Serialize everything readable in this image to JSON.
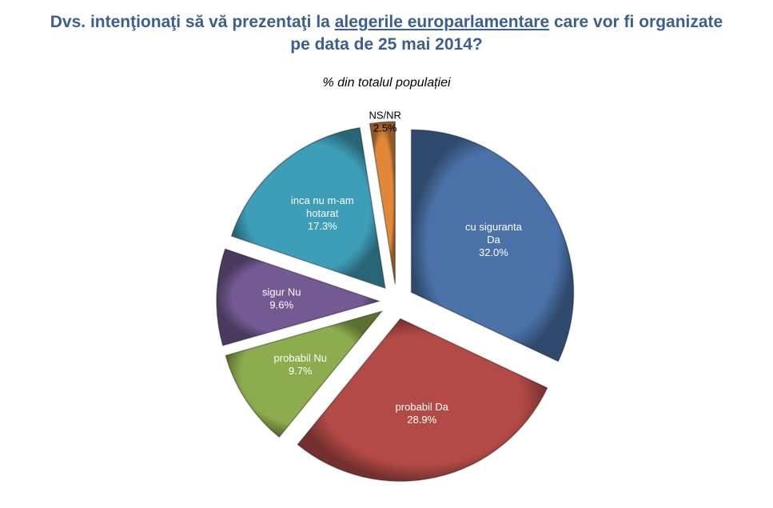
{
  "chart_data": {
    "type": "pie",
    "title_parts": [
      "Dvs. intenţionaţi să vă prezentaţi la ",
      "alegerile europarlamentare",
      " care vor fi organizate pe data de 25 mai 2014?"
    ],
    "subtitle": "% din totalul populației",
    "slices": [
      {
        "label": "cu siguranta Da",
        "lines": [
          "cu siguranta",
          "Da"
        ],
        "value": 32.0,
        "value_label": "32.0%",
        "color": "#4a72a8",
        "text_color": "#ffffff"
      },
      {
        "label": "probabil Da",
        "lines": [
          "probabil Da"
        ],
        "value": 28.9,
        "value_label": "28.9%",
        "color": "#b24a46",
        "text_color": "#ffffff"
      },
      {
        "label": "probabil Nu",
        "lines": [
          "probabil Nu"
        ],
        "value": 9.7,
        "value_label": "9.7%",
        "color": "#8dac4d",
        "text_color": "#ffffff"
      },
      {
        "label": "sigur Nu",
        "lines": [
          "sigur Nu"
        ],
        "value": 9.6,
        "value_label": "9.6%",
        "color": "#735a93",
        "text_color": "#ffffff"
      },
      {
        "label": "inca nu m-am hotarat",
        "lines": [
          "inca nu m-am",
          "hotarat"
        ],
        "value": 17.3,
        "value_label": "17.3%",
        "color": "#3e9db7",
        "text_color": "#ffffff"
      },
      {
        "label": "NS/NR",
        "lines": [
          "NS/NR"
        ],
        "value": 2.5,
        "value_label": "2.5%",
        "color": "#e0873a",
        "text_color": "#000000"
      }
    ]
  }
}
